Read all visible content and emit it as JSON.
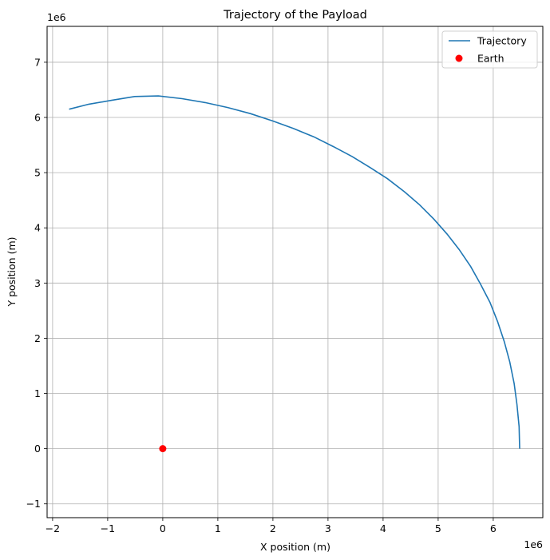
{
  "chart_data": {
    "type": "line",
    "title": "Trajectory of the Payload",
    "xlabel": "X position (m)",
    "ylabel": "Y position (m)",
    "x_offset_label": "1e6",
    "y_offset_label": "1e6",
    "xlim": [
      -2.1,
      6.9
    ],
    "ylim": [
      -1.25,
      7.65
    ],
    "xticks": [
      -2,
      -1,
      0,
      1,
      2,
      3,
      4,
      5,
      6
    ],
    "yticks": [
      -1,
      0,
      1,
      2,
      3,
      4,
      5,
      6,
      7
    ],
    "grid": true,
    "legend_position": "top-right",
    "colors": {
      "trajectory": "#1f77b4",
      "earth": "#ff0000",
      "grid": "#b0b0b0"
    },
    "series": [
      {
        "name": "Trajectory",
        "kind": "line",
        "x": [
          6.48,
          6.47,
          6.43,
          6.38,
          6.3,
          6.2,
          6.08,
          5.94,
          5.77,
          5.59,
          5.38,
          5.16,
          4.92,
          4.66,
          4.38,
          4.08,
          3.77,
          3.44,
          3.1,
          2.74,
          2.37,
          1.99,
          1.59,
          1.18,
          0.77,
          0.35,
          -0.08,
          -0.51,
          -0.93,
          -1.34,
          -1.7
        ],
        "y": [
          0.0,
          0.4,
          0.8,
          1.18,
          1.57,
          1.94,
          2.3,
          2.65,
          2.98,
          3.3,
          3.61,
          3.89,
          4.16,
          4.42,
          4.66,
          4.89,
          5.09,
          5.29,
          5.47,
          5.65,
          5.8,
          5.94,
          6.07,
          6.18,
          6.27,
          6.34,
          6.39,
          6.38,
          6.31,
          6.24,
          6.15
        ]
      },
      {
        "name": "Earth",
        "kind": "scatter",
        "x": [
          0
        ],
        "y": [
          0
        ]
      }
    ]
  }
}
